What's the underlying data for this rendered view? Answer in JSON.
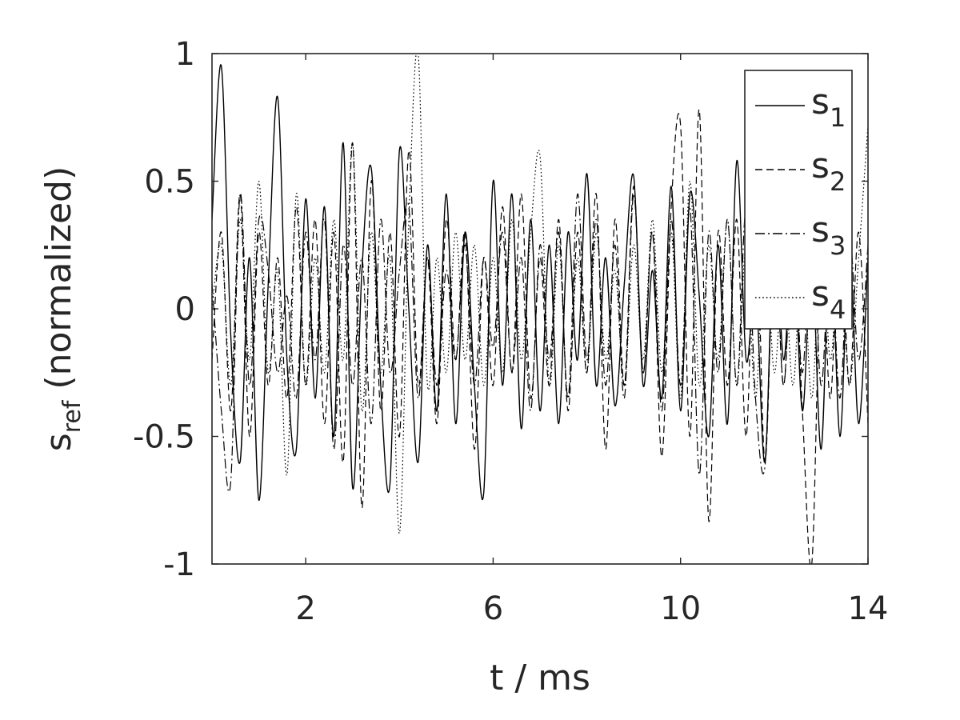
{
  "chart_data": {
    "type": "line",
    "title": "",
    "xlabel": "t / ms",
    "ylabel": {
      "base": "s",
      "sub": "ref",
      "rest": " (normalized)"
    },
    "xlim": [
      0,
      14
    ],
    "ylim": [
      -1,
      1
    ],
    "xticks": [
      2,
      6,
      10,
      14
    ],
    "xtick_labels": [
      "2",
      "6",
      "10",
      "14"
    ],
    "yticks": [
      -1,
      -0.5,
      0,
      0.5,
      1
    ],
    "ytick_labels": [
      "-1",
      "-0.5",
      "0",
      "0.5",
      "1"
    ],
    "grid": false,
    "legend_position": "top-right",
    "series": [
      {
        "name": "s1",
        "label_base": "s",
        "label_sub": "1",
        "line_style": "solid",
        "color": "#000000",
        "x": [
          0.0,
          0.2,
          0.4,
          0.6,
          0.8,
          1.0,
          1.2,
          1.4,
          1.6,
          1.8,
          2.0,
          2.2,
          2.4,
          2.6,
          2.8,
          3.0,
          3.2,
          3.4,
          3.6,
          3.8,
          4.0,
          4.2,
          4.4,
          4.6,
          4.8,
          5.0,
          5.2,
          5.4,
          5.6,
          5.8,
          6.0,
          6.2,
          6.4,
          6.6,
          6.8,
          7.0,
          7.2,
          7.4,
          7.6,
          7.8,
          8.0,
          8.2,
          8.4,
          8.6,
          8.8,
          9.0,
          9.2,
          9.4,
          9.6,
          9.8,
          10.0,
          10.2,
          10.4,
          10.6,
          10.8,
          11.0,
          11.2,
          11.4,
          11.6,
          11.8,
          12.0,
          12.2,
          12.4,
          12.6,
          12.8,
          13.0,
          13.2,
          13.4,
          13.6,
          13.8,
          14.0
        ],
        "values": [
          0.35,
          0.95,
          -0.1,
          -0.6,
          0.2,
          -0.75,
          0.1,
          0.83,
          -0.2,
          -0.55,
          0.43,
          -0.35,
          0.4,
          -0.5,
          0.65,
          -0.7,
          0.15,
          0.55,
          -0.3,
          -0.68,
          0.62,
          0.0,
          -0.6,
          0.25,
          -0.4,
          0.45,
          -0.45,
          0.3,
          -0.3,
          -0.72,
          0.5,
          -0.3,
          0.45,
          -0.47,
          0.35,
          -0.4,
          0.25,
          -0.45,
          0.3,
          -0.2,
          0.53,
          -0.3,
          0.2,
          -0.38,
          0.1,
          0.52,
          -0.3,
          0.15,
          -0.35,
          0.48,
          -0.4,
          0.45,
          0.05,
          -0.5,
          0.25,
          -0.45,
          0.58,
          -0.2,
          0.1,
          -0.6,
          0.35,
          -0.2,
          0.3,
          -0.4,
          0.2,
          -0.55,
          0.3,
          -0.5,
          0.25,
          -0.45,
          0.2
        ]
      },
      {
        "name": "s2",
        "label_base": "s",
        "label_sub": "2",
        "line_style": "dashed",
        "color": "#000000",
        "x": [
          0.0,
          0.2,
          0.4,
          0.6,
          0.8,
          1.0,
          1.2,
          1.4,
          1.6,
          1.8,
          2.0,
          2.2,
          2.4,
          2.6,
          2.8,
          3.0,
          3.2,
          3.4,
          3.6,
          3.8,
          4.0,
          4.2,
          4.4,
          4.6,
          4.8,
          5.0,
          5.2,
          5.4,
          5.6,
          5.8,
          6.0,
          6.2,
          6.4,
          6.6,
          6.8,
          7.0,
          7.2,
          7.4,
          7.6,
          7.8,
          8.0,
          8.2,
          8.4,
          8.6,
          8.8,
          9.0,
          9.2,
          9.4,
          9.6,
          9.8,
          10.0,
          10.2,
          10.4,
          10.6,
          10.8,
          11.0,
          11.2,
          11.4,
          11.6,
          11.8,
          12.0,
          12.2,
          12.4,
          12.6,
          12.8,
          13.0,
          13.2,
          13.4,
          13.6,
          13.8,
          14.0
        ],
        "values": [
          -0.2,
          0.3,
          -0.4,
          0.45,
          -0.5,
          0.3,
          -0.3,
          0.2,
          -0.35,
          0.4,
          -0.3,
          0.35,
          -0.45,
          0.3,
          -0.6,
          0.65,
          -0.78,
          0.5,
          -0.4,
          0.3,
          -0.5,
          0.62,
          -0.3,
          0.2,
          -0.45,
          0.35,
          -0.2,
          0.3,
          -0.55,
          0.2,
          -0.3,
          0.4,
          -0.25,
          0.45,
          -0.35,
          0.2,
          -0.3,
          0.35,
          -0.4,
          0.3,
          -0.25,
          0.45,
          -0.55,
          0.35,
          -0.3,
          0.48,
          -0.25,
          0.3,
          -0.58,
          0.4,
          0.72,
          -0.5,
          0.78,
          -0.83,
          0.3,
          -0.3,
          0.35,
          -0.5,
          0.45,
          -0.6,
          0.3,
          -0.3,
          0.35,
          -0.4,
          -1.0,
          0.2,
          -0.35,
          0.4,
          -0.3,
          0.3,
          -0.45
        ]
      },
      {
        "name": "s3",
        "label_base": "s",
        "label_sub": "3",
        "line_style": "dashdot",
        "color": "#000000",
        "x": [
          0.0,
          0.2,
          0.4,
          0.6,
          0.8,
          1.0,
          1.2,
          1.4,
          1.6,
          1.8,
          2.0,
          2.2,
          2.4,
          2.6,
          2.8,
          3.0,
          3.2,
          3.4,
          3.6,
          3.8,
          4.0,
          4.2,
          4.4,
          4.6,
          4.8,
          5.0,
          5.2,
          5.4,
          5.6,
          5.8,
          6.0,
          6.2,
          6.4,
          6.6,
          6.8,
          7.0,
          7.2,
          7.4,
          7.6,
          7.8,
          8.0,
          8.2,
          8.4,
          8.6,
          8.8,
          9.0,
          9.2,
          9.4,
          9.6,
          9.8,
          10.0,
          10.2,
          10.4,
          10.6,
          10.8,
          11.0,
          11.2,
          11.4,
          11.6,
          11.8,
          12.0,
          12.2,
          12.4,
          12.6,
          12.8,
          13.0,
          13.2,
          13.4,
          13.6,
          13.8,
          14.0
        ],
        "values": [
          0.1,
          -0.4,
          -0.68,
          0.45,
          -0.3,
          0.35,
          0.15,
          -0.25,
          0.05,
          -0.35,
          0.3,
          -0.2,
          0.35,
          -0.55,
          0.25,
          -0.3,
          0.2,
          -0.45,
          0.35,
          -0.25,
          0.15,
          0.4,
          -0.35,
          0.2,
          -0.3,
          0.15,
          -0.2,
          0.25,
          -0.3,
          0.2,
          -0.15,
          0.3,
          -0.25,
          0.2,
          -0.4,
          0.25,
          -0.2,
          0.3,
          -0.35,
          0.45,
          -0.2,
          0.35,
          -0.3,
          0.25,
          -0.35,
          0.45,
          -0.25,
          0.3,
          -0.4,
          0.35,
          -0.3,
          0.4,
          -0.65,
          0.3,
          -0.25,
          0.35,
          -0.3,
          0.4,
          -0.35,
          -0.62,
          0.25,
          -0.3,
          0.3,
          -0.25,
          0.35,
          -0.3,
          0.25,
          -0.35,
          0.3,
          -0.2,
          0.25
        ]
      },
      {
        "name": "s4",
        "label_base": "s",
        "label_sub": "4",
        "line_style": "dotted",
        "color": "#000000",
        "x": [
          0.0,
          0.2,
          0.4,
          0.6,
          0.8,
          1.0,
          1.2,
          1.4,
          1.6,
          1.8,
          2.0,
          2.2,
          2.4,
          2.6,
          2.8,
          3.0,
          3.2,
          3.4,
          3.6,
          3.8,
          4.0,
          4.2,
          4.4,
          4.6,
          4.8,
          5.0,
          5.2,
          5.4,
          5.6,
          5.8,
          6.0,
          6.2,
          6.4,
          6.6,
          6.8,
          7.0,
          7.2,
          7.4,
          7.6,
          7.8,
          8.0,
          8.2,
          8.4,
          8.6,
          8.8,
          9.0,
          9.2,
          9.4,
          9.6,
          9.8,
          10.0,
          10.2,
          10.4,
          10.6,
          10.8,
          11.0,
          11.2,
          11.4,
          11.6,
          11.8,
          12.0,
          12.2,
          12.4,
          12.6,
          12.8,
          13.0,
          13.2,
          13.4,
          13.6,
          13.8,
          14.0
        ],
        "values": [
          0.0,
          0.25,
          -0.3,
          0.35,
          -0.2,
          0.5,
          -0.25,
          0.15,
          -0.65,
          0.45,
          -0.3,
          0.2,
          -0.25,
          0.35,
          -0.2,
          0.65,
          -0.4,
          0.3,
          -0.25,
          0.2,
          -0.88,
          0.35,
          1.0,
          -0.3,
          0.2,
          -0.25,
          0.3,
          -0.2,
          0.25,
          -0.3,
          0.2,
          -0.25,
          0.35,
          -0.2,
          0.3,
          0.6,
          -0.3,
          0.25,
          -0.35,
          0.2,
          -0.25,
          0.3,
          -0.2,
          0.15,
          -0.3,
          0.25,
          -0.2,
          0.35,
          -0.25,
          0.3,
          -0.35,
          0.5,
          -0.3,
          0.25,
          -0.2,
          0.35,
          -0.3,
          0.25,
          -0.35,
          0.3,
          -0.25,
          0.2,
          -0.3,
          0.25,
          -0.35,
          0.3,
          -0.2,
          0.25,
          -0.3,
          0.2,
          0.72
        ]
      }
    ]
  }
}
